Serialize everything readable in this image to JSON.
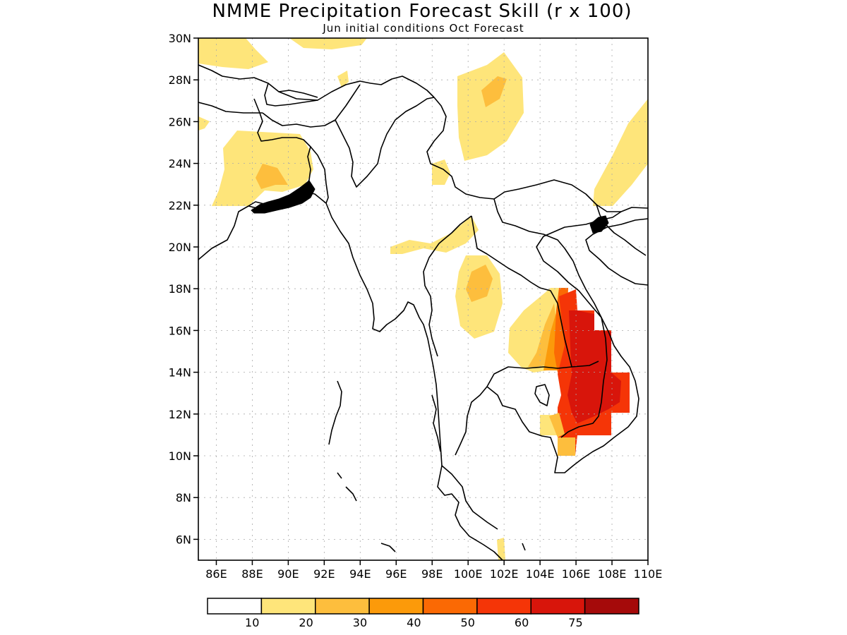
{
  "title": "NMME Precipitation Forecast Skill (r x 100)",
  "subtitle": "Jun initial conditions  Oct Forecast",
  "map": {
    "lon_range": [
      85,
      110
    ],
    "lat_range": [
      5,
      30
    ],
    "lon_ticks": [
      "86E",
      "88E",
      "90E",
      "92E",
      "94E",
      "96E",
      "98E",
      "100E",
      "102E",
      "104E",
      "106E",
      "108E",
      "110E"
    ],
    "lat_ticks": [
      "30N",
      "28N",
      "26N",
      "24N",
      "22N",
      "20N",
      "18N",
      "16N",
      "14N",
      "12N",
      "10N",
      "8N",
      "6N"
    ],
    "grid": "dotted"
  },
  "colorbar": {
    "colors": [
      "#ffffff",
      "#fee57a",
      "#fdbe3d",
      "#fc9a0a",
      "#fb6904",
      "#f53507",
      "#d8150b",
      "#a50a0a"
    ],
    "labels": [
      "10",
      "20",
      "30",
      "40",
      "50",
      "60",
      "75"
    ]
  },
  "shading_levels": [
    {
      "level": "10-20",
      "color": "#fee57a"
    },
    {
      "level": "20-30",
      "color": "#fdbe3d"
    },
    {
      "level": "30-40",
      "color": "#fc9a0a"
    },
    {
      "level": "40-50",
      "color": "#fb6904"
    },
    {
      "level": "50-60",
      "color": "#f53507"
    },
    {
      "level": "60-75",
      "color": "#d8150b"
    }
  ]
}
